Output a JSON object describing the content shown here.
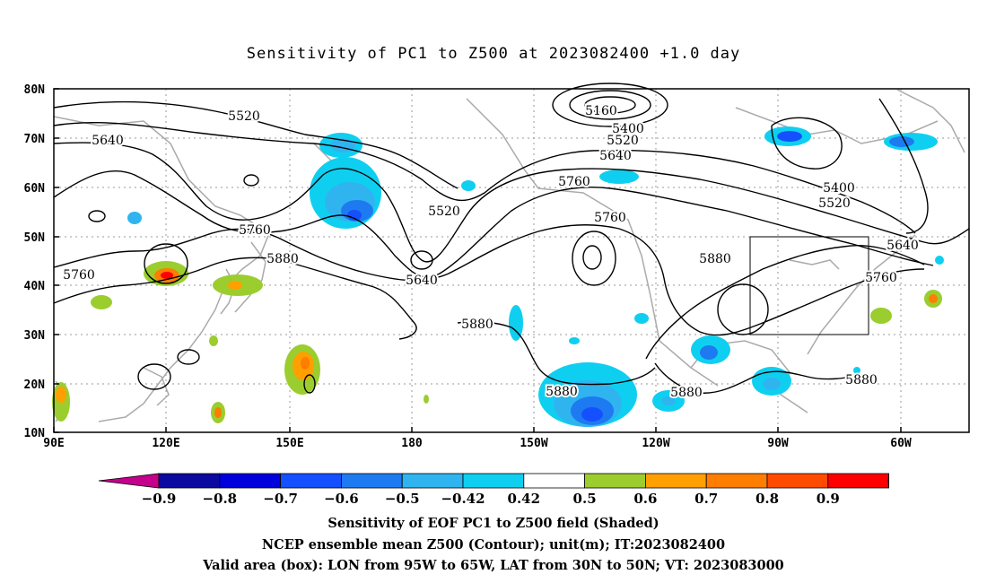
{
  "title": "Sensitivity of PC1 to Z500 at 2023082400 +1.0 day",
  "map": {
    "lat_labels": [
      "80N",
      "70N",
      "60N",
      "50N",
      "40N",
      "30N",
      "20N",
      "10N"
    ],
    "lon_labels": [
      "90E",
      "120E",
      "150E",
      "180",
      "150W",
      "120W",
      "90W",
      "60W"
    ],
    "contour_labels": [
      {
        "text": "5520"
      },
      {
        "text": "5640"
      },
      {
        "text": "5760"
      },
      {
        "text": "5760"
      },
      {
        "text": "5880"
      },
      {
        "text": "5520"
      },
      {
        "text": "5640"
      },
      {
        "text": "5160"
      },
      {
        "text": "5400"
      },
      {
        "text": "5520"
      },
      {
        "text": "5640"
      },
      {
        "text": "5760"
      },
      {
        "text": "5760"
      },
      {
        "text": "5880"
      },
      {
        "text": "5880"
      },
      {
        "text": "5880"
      },
      {
        "text": "5880"
      },
      {
        "text": "5400"
      },
      {
        "text": "5520"
      },
      {
        "text": "5640"
      },
      {
        "text": "5760"
      },
      {
        "text": "5880"
      }
    ],
    "valid_box": {
      "lon_from": "95W",
      "lon_to": "65W",
      "lat_from": "30N",
      "lat_to": "50N"
    }
  },
  "colorbar": {
    "tick_labels": [
      "−0.9",
      "−0.8",
      "−0.7",
      "−0.6",
      "−0.5",
      "−0.42",
      "0.42",
      "0.5",
      "0.6",
      "0.7",
      "0.8",
      "0.9"
    ],
    "colors": [
      "#c4008c",
      "#0a0aa0",
      "#0000dc",
      "#1450ff",
      "#1e7af0",
      "#2fb4f0",
      "#0fcff0",
      "#ffffff",
      "#9bcd2e",
      "#ffa000",
      "#ff7d00",
      "#ff4b00",
      "#ff0000",
      "#f0a0c8"
    ]
  },
  "footer": {
    "line1": "Sensitivity of EOF PC1 to Z500 field (Shaded)",
    "line2": "NCEP ensemble mean Z500 (Contour); unit(m); IT:2023082400",
    "line3": "Valid area (box): LON from 95W to 65W, LAT from 30N to 50N; VT: 2023083000"
  }
}
